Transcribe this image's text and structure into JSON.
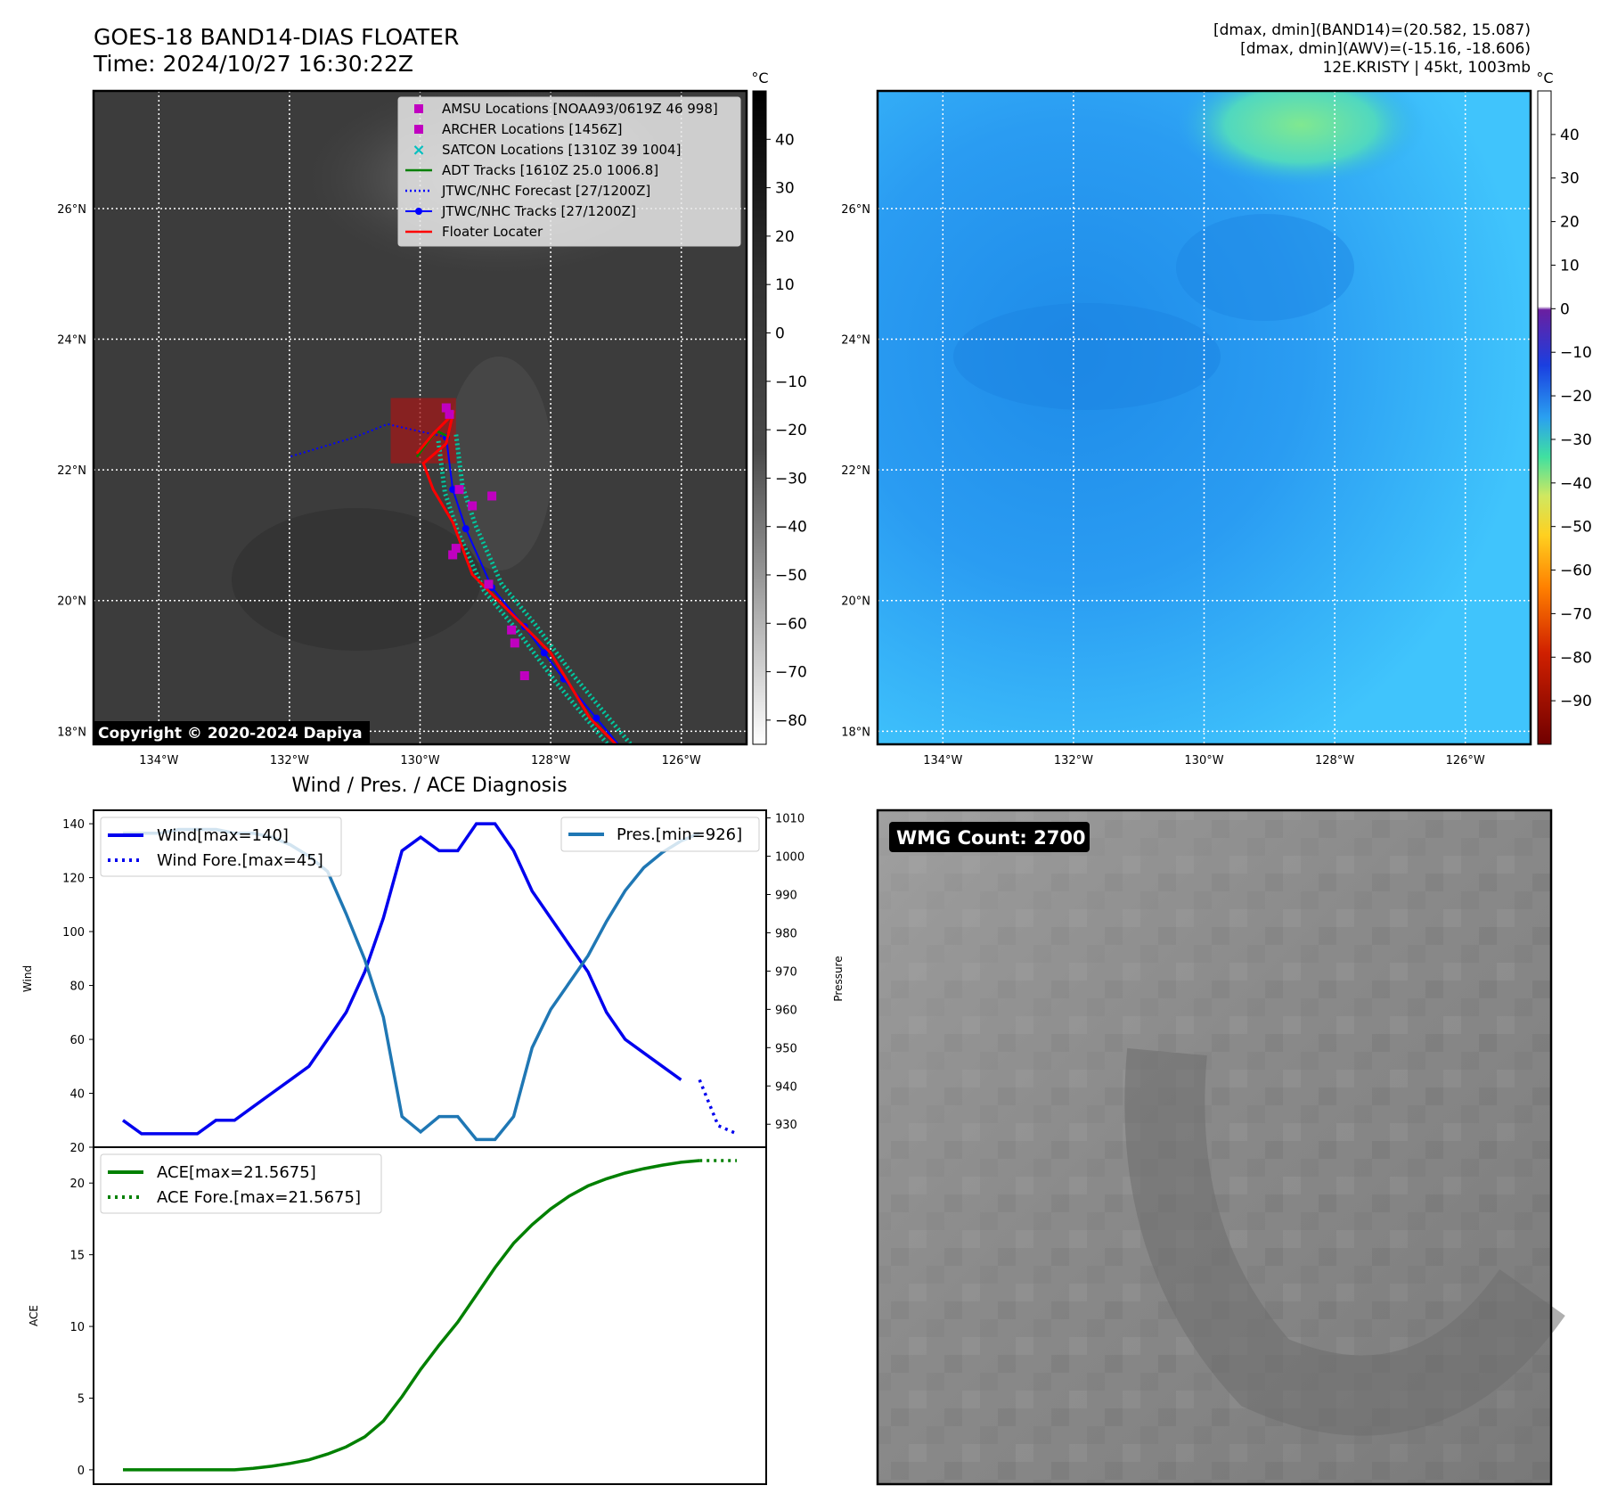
{
  "header": {
    "title_line1": "GOES-18 BAND14-DIAS FLOATER",
    "title_line2": "Time: 2024/10/27 16:30:22Z",
    "info_line1": "[dmax, dmin](BAND14)=(20.582, 15.087)",
    "info_line2": "[dmax, dmin](AWV)=(-15.16, -18.606)",
    "info_line3": "12E.KRISTY | 45kt, 1003mb"
  },
  "copyright": "Copyright © 2020-2024 Dapiya",
  "map": {
    "lon_ticks": [
      "134°W",
      "132°W",
      "130°W",
      "128°W",
      "126°W"
    ],
    "lat_ticks": [
      "26°N",
      "24°N",
      "22°N",
      "20°N",
      "18°N"
    ],
    "lon_range": [
      -135,
      -125
    ],
    "lat_range": [
      17.8,
      27.8
    ],
    "legend": [
      {
        "label": "AMSU Locations [NOAA93/0619Z 46 998]",
        "marker": "square",
        "color": "#c000c0"
      },
      {
        "label": "ARCHER Locations [1456Z]",
        "marker": "square",
        "color": "#c000c0"
      },
      {
        "label": "SATCON Locations [1310Z 39 1004]",
        "marker": "x",
        "color": "#00c0c0"
      },
      {
        "label": "ADT Tracks [1610Z 25.0 1006.8]",
        "marker": "line",
        "color": "#008000"
      },
      {
        "label": "JTWC/NHC Forecast [27/1200Z]",
        "marker": "dotted",
        "color": "#0000ff"
      },
      {
        "label": "JTWC/NHC Tracks [27/1200Z]",
        "marker": "line-dot",
        "color": "#0000ff"
      },
      {
        "label": "Floater Locater",
        "marker": "line",
        "color": "#ff0000"
      }
    ],
    "jtwc_track": [
      [
        -126.8,
        17.6
      ],
      [
        -127.3,
        18.2
      ],
      [
        -127.8,
        18.8
      ],
      [
        -128.1,
        19.2
      ],
      [
        -128.4,
        19.6
      ],
      [
        -128.9,
        20.2
      ],
      [
        -129.3,
        21.1
      ],
      [
        -129.5,
        21.7
      ],
      [
        -129.6,
        22.5
      ]
    ],
    "jtwc_forecast": [
      [
        -129.6,
        22.5
      ],
      [
        -130.5,
        22.7
      ],
      [
        -131.0,
        22.5
      ],
      [
        -132.0,
        22.2
      ]
    ],
    "floater_track": [
      [
        -126.8,
        17.6
      ],
      [
        -127.4,
        18.2
      ],
      [
        -128.0,
        19.2
      ],
      [
        -128.7,
        19.9
      ],
      [
        -129.2,
        20.4
      ],
      [
        -129.5,
        21.2
      ],
      [
        -129.8,
        21.7
      ],
      [
        -129.95,
        22.1
      ],
      [
        -129.6,
        22.4
      ],
      [
        -129.5,
        22.85
      ],
      [
        -129.8,
        22.55
      ],
      [
        -130.05,
        22.25
      ]
    ],
    "adt_track": [
      [
        -130.05,
        22.2
      ],
      [
        -129.75,
        22.6
      ],
      [
        -129.55,
        22.5
      ]
    ],
    "amsu_points": [
      [
        -129.6,
        22.95
      ],
      [
        -129.55,
        22.85
      ],
      [
        -129.4,
        21.7
      ],
      [
        -129.2,
        21.45
      ],
      [
        -128.9,
        21.6
      ],
      [
        -129.45,
        20.8
      ],
      [
        -129.5,
        20.7
      ],
      [
        -128.6,
        19.55
      ],
      [
        -128.55,
        19.35
      ],
      [
        -128.4,
        18.85
      ],
      [
        -128.95,
        20.25
      ]
    ],
    "floater_box": {
      "lon": [
        -130.45,
        -129.45
      ],
      "lat": [
        22.1,
        23.1
      ]
    },
    "colorbar_ticks": [
      "40",
      "30",
      "20",
      "10",
      "0",
      "−10",
      "−20",
      "−30",
      "−40",
      "−50",
      "−60",
      "−70",
      "−80"
    ],
    "colorbar_unit": "°C",
    "colorbar_range": [
      -85,
      50
    ]
  },
  "awv": {
    "colorbar_ticks": [
      "40",
      "30",
      "20",
      "10",
      "0",
      "−10",
      "−20",
      "−30",
      "−40",
      "−50",
      "−60",
      "−70",
      "−80",
      "−90"
    ],
    "colorbar_unit": "°C",
    "colorbar_range": [
      -100,
      50
    ]
  },
  "chart_data": [
    {
      "type": "line",
      "title": "Wind / Pres. / ACE Diagnosis",
      "ylabel": "Wind",
      "ylabel_right": "Pressure",
      "ylim": [
        20,
        145
      ],
      "ylim_right": [
        924,
        1012
      ],
      "y_ticks": [
        20,
        40,
        60,
        80,
        100,
        120,
        140
      ],
      "y_ticks_right": [
        930,
        940,
        950,
        960,
        970,
        980,
        990,
        1000,
        1010
      ],
      "series": [
        {
          "name": "Wind[max=140]",
          "color": "#0000ee",
          "style": "solid",
          "x": [
            0,
            1,
            2,
            3,
            4,
            5,
            6,
            7,
            8,
            9,
            10,
            11,
            12,
            13,
            14,
            15,
            16,
            17,
            18,
            19,
            20,
            21,
            22,
            23,
            24,
            25,
            26,
            27,
            28,
            29,
            30,
            31
          ],
          "values": [
            30,
            25,
            25,
            25,
            25,
            30,
            30,
            35,
            40,
            45,
            50,
            60,
            70,
            85,
            105,
            130,
            135,
            130,
            130,
            140,
            140,
            130,
            115,
            105,
            95,
            85,
            70,
            60,
            55,
            50,
            45,
            null
          ]
        },
        {
          "name": "Wind Fore.[max=45]",
          "color": "#0000ee",
          "style": "dotted",
          "x": [
            31,
            32,
            33
          ],
          "values": [
            45,
            28,
            25
          ]
        },
        {
          "name": "Pres.[min=926]",
          "color": "#1f77b4",
          "style": "solid",
          "axis": "right",
          "x": [
            0,
            1,
            2,
            3,
            4,
            5,
            6,
            7,
            8,
            9,
            10,
            11,
            12,
            13,
            14,
            15,
            16,
            17,
            18,
            19,
            20,
            21,
            22,
            23,
            24,
            25,
            26,
            27,
            28,
            29,
            30,
            31
          ],
          "values": [
            1006,
            1006,
            1006,
            1007,
            1007,
            1007,
            1006,
            1006,
            1005,
            1003,
            1000,
            996,
            985,
            973,
            958,
            932,
            928,
            932,
            932,
            926,
            926,
            932,
            950,
            960,
            967,
            974,
            983,
            991,
            997,
            1001,
            1004,
            1006
          ]
        }
      ],
      "legend_left": [
        "Wind[max=140]",
        "Wind Fore.[max=45]"
      ],
      "legend_right": [
        "Pres.[min=926]"
      ]
    },
    {
      "type": "line",
      "ylabel": "ACE",
      "ylim": [
        -1,
        22.5
      ],
      "y_ticks": [
        0,
        5,
        10,
        15,
        20
      ],
      "series": [
        {
          "name": "ACE[max=21.5675]",
          "color": "#008000",
          "style": "solid",
          "x": [
            0,
            1,
            2,
            3,
            4,
            5,
            6,
            7,
            8,
            9,
            10,
            11,
            12,
            13,
            14,
            15,
            16,
            17,
            18,
            19,
            20,
            21,
            22,
            23,
            24,
            25,
            26,
            27,
            28,
            29,
            30,
            31
          ],
          "values": [
            0,
            0,
            0,
            0,
            0,
            0,
            0,
            0.1,
            0.25,
            0.45,
            0.7,
            1.1,
            1.6,
            2.3,
            3.4,
            5.1,
            7.0,
            8.7,
            10.3,
            12.2,
            14.1,
            15.8,
            17.1,
            18.2,
            19.1,
            19.8,
            20.3,
            20.7,
            21.0,
            21.25,
            21.45,
            21.5675
          ]
        },
        {
          "name": "ACE Fore.[max=21.5675]",
          "color": "#008000",
          "style": "dotted",
          "x": [
            31,
            32,
            33
          ],
          "values": [
            21.5675,
            21.5675,
            21.5675
          ]
        }
      ],
      "legend": [
        "ACE[max=21.5675]",
        "ACE Fore.[max=21.5675]"
      ]
    }
  ],
  "wmg": {
    "label": "WMG Count: 2700"
  }
}
